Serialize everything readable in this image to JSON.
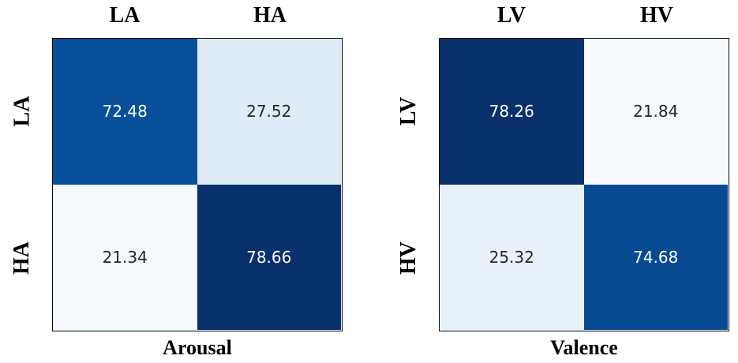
{
  "chart_data": [
    {
      "type": "heatmap",
      "xlabel": "Arousal",
      "col_labels": [
        "LA",
        "HA"
      ],
      "row_labels": [
        "LA",
        "HA"
      ],
      "values": [
        [
          72.48,
          27.52
        ],
        [
          21.34,
          78.66
        ]
      ],
      "cell_colors": [
        [
          "#08509b",
          "#dfebf7"
        ],
        [
          "#f6faff",
          "#08306b"
        ]
      ],
      "text_colors": [
        [
          "#ffffff",
          "#262626"
        ],
        [
          "#262626",
          "#ffffff"
        ]
      ]
    },
    {
      "type": "heatmap",
      "xlabel": "Valence",
      "col_labels": [
        "LV",
        "HV"
      ],
      "row_labels": [
        "LV",
        "HV"
      ],
      "values": [
        [
          78.26,
          21.84
        ],
        [
          25.32,
          74.68
        ]
      ],
      "cell_colors": [
        [
          "#08306b",
          "#f7fbff"
        ],
        [
          "#e8f1fa",
          "#084a91"
        ]
      ],
      "text_colors": [
        [
          "#ffffff",
          "#262626"
        ],
        [
          "#262626",
          "#ffffff"
        ]
      ]
    }
  ]
}
